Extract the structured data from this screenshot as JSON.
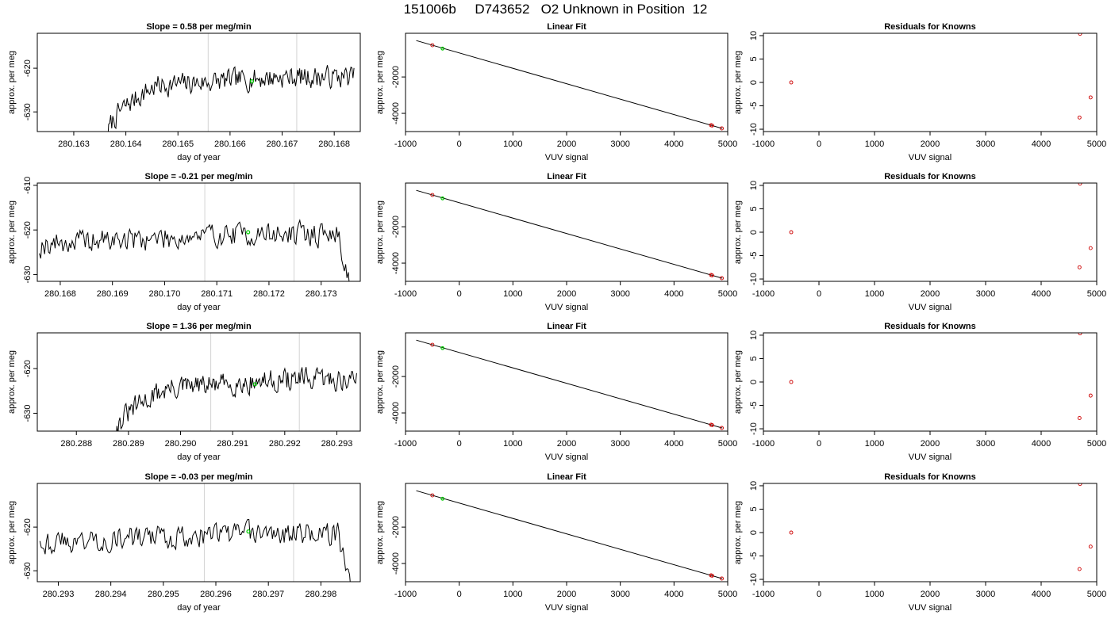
{
  "page_title": "151006b     D743652   O2 Unknown in Position  12",
  "colors": {
    "trace": "#000000",
    "reference_line": "#d3d3d3",
    "known_marker": "#cd0000",
    "unknown_marker": "#00cd00",
    "fit_line": "#000000"
  },
  "chart_data": [
    {
      "type": "line",
      "row": 0,
      "title": "Slope =  0.58  per meg/min",
      "xlabel": "day of year",
      "ylabel": "approx. per meg",
      "xlim": [
        280.1623,
        280.1685
      ],
      "ylim": [
        -634.5,
        -612.0
      ],
      "xticks": [
        280.163,
        280.164,
        280.165,
        280.166,
        280.167,
        280.168
      ],
      "xtick_labels": [
        "280.163",
        "280.164",
        "280.165",
        "280.166",
        "280.167",
        "280.168"
      ],
      "yticks": [
        -630,
        -620
      ],
      "ytick_labels": [
        "-630",
        "-620"
      ],
      "reference_lines_x": [
        280.16558,
        280.16728
      ],
      "series_start": 280.16365,
      "series_end": 280.16838,
      "start_value": -636,
      "mean_value": -622.0,
      "rise_fraction": 0.2,
      "noise": 1.4,
      "seed": 7,
      "unknown_point": {
        "x": 280.16642,
        "y": -623.0
      }
    },
    {
      "type": "scatter",
      "row": 0,
      "title": "Linear Fit",
      "xlabel": "VUV signal",
      "ylabel": "approx. per meg",
      "xlim": [
        -1000,
        5000
      ],
      "ylim": [
        -5000,
        400
      ],
      "xticks": [
        -1000,
        0,
        1000,
        2000,
        3000,
        4000,
        5000
      ],
      "xtick_labels": [
        "-1000",
        "0",
        "1000",
        "2000",
        "3000",
        "4000",
        "5000"
      ],
      "yticks": [
        -4000,
        -2000
      ],
      "ytick_labels": [
        "-4000",
        "-2000"
      ],
      "fit_line": [
        [
          -800,
          0
        ],
        [
          4900,
          -4830
        ]
      ],
      "knowns": [
        {
          "x": -500,
          "y": -255
        },
        {
          "x": 4690,
          "y": -4650
        },
        {
          "x": 4710,
          "y": -4670
        },
        {
          "x": 4890,
          "y": -4826
        }
      ],
      "unknown_point": {
        "x": -310,
        "y": -440
      }
    },
    {
      "type": "scatter",
      "row": 0,
      "title": "Residuals for Knowns",
      "xlabel": "VUV signal",
      "ylabel": "approx. per meg",
      "xlim": [
        -1000,
        5000
      ],
      "ylim": [
        -10.5,
        10.5
      ],
      "xticks": [
        -1000,
        0,
        1000,
        2000,
        3000,
        4000,
        5000
      ],
      "xtick_labels": [
        "-1000",
        "0",
        "1000",
        "2000",
        "3000",
        "4000",
        "5000"
      ],
      "yticks": [
        -10,
        -5,
        0,
        5,
        10
      ],
      "ytick_labels": [
        "-10",
        "-5",
        "0",
        "5",
        "10"
      ],
      "knowns": [
        {
          "x": -500,
          "y": 0
        },
        {
          "x": 4700,
          "y": 10.4
        },
        {
          "x": 4690,
          "y": -7.5
        },
        {
          "x": 4890,
          "y": -3.2
        }
      ]
    },
    {
      "type": "line",
      "row": 1,
      "title": "Slope =  -0.21  per meg/min",
      "xlabel": "day of year",
      "ylabel": "approx. per meg",
      "xlim": [
        280.16756,
        280.17375
      ],
      "ylim": [
        -631.5,
        -609.5
      ],
      "xticks": [
        280.168,
        280.169,
        280.17,
        280.171,
        280.172,
        280.173
      ],
      "xtick_labels": [
        "280.168",
        "280.169",
        "280.170",
        "280.171",
        "280.172",
        "280.173"
      ],
      "yticks": [
        -630,
        -620,
        -610
      ],
      "ytick_labels": [
        "-630",
        "-620",
        "-610"
      ],
      "reference_lines_x": [
        280.17077,
        280.17248
      ],
      "series_start": 280.1676,
      "series_end": 280.17362,
      "start_value": -624,
      "mean_value": -621.0,
      "rise_fraction": 0.02,
      "noise": 1.5,
      "seed": 19,
      "end_drop": true,
      "unknown_point": {
        "x": 280.1716,
        "y": -620.5
      }
    },
    {
      "type": "scatter",
      "row": 1,
      "title": "Linear Fit",
      "xlabel": "VUV signal",
      "ylabel": "approx. per meg",
      "xlim": [
        -1000,
        5000
      ],
      "ylim": [
        -5000,
        400
      ],
      "xticks": [
        -1000,
        0,
        1000,
        2000,
        3000,
        4000,
        5000
      ],
      "xtick_labels": [
        "-1000",
        "0",
        "1000",
        "2000",
        "3000",
        "4000",
        "5000"
      ],
      "yticks": [
        -4000,
        -2000
      ],
      "ytick_labels": [
        "-4000",
        "-2000"
      ],
      "fit_line": [
        [
          -800,
          0
        ],
        [
          4900,
          -4830
        ]
      ],
      "knowns": [
        {
          "x": -500,
          "y": -255
        },
        {
          "x": 4690,
          "y": -4650
        },
        {
          "x": 4710,
          "y": -4670
        },
        {
          "x": 4890,
          "y": -4826
        }
      ],
      "unknown_point": {
        "x": -310,
        "y": -440
      }
    },
    {
      "type": "scatter",
      "row": 1,
      "title": "Residuals for Knowns",
      "xlabel": "VUV signal",
      "ylabel": "approx. per meg",
      "xlim": [
        -1000,
        5000
      ],
      "ylim": [
        -10.5,
        10.5
      ],
      "xticks": [
        -1000,
        0,
        1000,
        2000,
        3000,
        4000,
        5000
      ],
      "xtick_labels": [
        "-1000",
        "0",
        "1000",
        "2000",
        "3000",
        "4000",
        "5000"
      ],
      "yticks": [
        -10,
        -5,
        0,
        5,
        10
      ],
      "ytick_labels": [
        "-10",
        "-5",
        "0",
        "5",
        "10"
      ],
      "knowns": [
        {
          "x": -500,
          "y": 0
        },
        {
          "x": 4700,
          "y": 10.4
        },
        {
          "x": 4690,
          "y": -7.5
        },
        {
          "x": 4890,
          "y": -3.4
        }
      ]
    },
    {
      "type": "line",
      "row": 2,
      "title": "Slope =  1.36  per meg/min",
      "xlabel": "day of year",
      "ylabel": "approx. per meg",
      "xlim": [
        280.28725,
        280.29345
      ],
      "ylim": [
        -634.0,
        -612.0
      ],
      "xticks": [
        280.288,
        280.289,
        280.29,
        280.291,
        280.292,
        280.293
      ],
      "xtick_labels": [
        "280.288",
        "280.289",
        "280.290",
        "280.291",
        "280.292",
        "280.293"
      ],
      "yticks": [
        -630,
        -620
      ],
      "ytick_labels": [
        "-630",
        "-620"
      ],
      "reference_lines_x": [
        280.29058,
        280.29228
      ],
      "series_start": 280.28872,
      "series_end": 280.29338,
      "start_value": -636,
      "mean_value": -622.5,
      "rise_fraction": 0.22,
      "noise": 1.4,
      "seed": 31,
      "unknown_point": {
        "x": 280.29143,
        "y": -623.5
      }
    },
    {
      "type": "scatter",
      "row": 2,
      "title": "Linear Fit",
      "xlabel": "VUV signal",
      "ylabel": "approx. per meg",
      "xlim": [
        -1000,
        5000
      ],
      "ylim": [
        -5000,
        400
      ],
      "xticks": [
        -1000,
        0,
        1000,
        2000,
        3000,
        4000,
        5000
      ],
      "xtick_labels": [
        "-1000",
        "0",
        "1000",
        "2000",
        "3000",
        "4000",
        "5000"
      ],
      "yticks": [
        -4000,
        -2000
      ],
      "ytick_labels": [
        "-4000",
        "-2000"
      ],
      "fit_line": [
        [
          -800,
          0
        ],
        [
          4900,
          -4830
        ]
      ],
      "knowns": [
        {
          "x": -500,
          "y": -255
        },
        {
          "x": 4690,
          "y": -4650
        },
        {
          "x": 4710,
          "y": -4670
        },
        {
          "x": 4890,
          "y": -4826
        }
      ],
      "unknown_point": {
        "x": -310,
        "y": -440
      }
    },
    {
      "type": "scatter",
      "row": 2,
      "title": "Residuals for Knowns",
      "xlabel": "VUV signal",
      "ylabel": "approx. per meg",
      "xlim": [
        -1000,
        5000
      ],
      "ylim": [
        -10.5,
        10.5
      ],
      "xticks": [
        -1000,
        0,
        1000,
        2000,
        3000,
        4000,
        5000
      ],
      "xtick_labels": [
        "-1000",
        "0",
        "1000",
        "2000",
        "3000",
        "4000",
        "5000"
      ],
      "yticks": [
        -10,
        -5,
        0,
        5,
        10
      ],
      "ytick_labels": [
        "-10",
        "-5",
        "0",
        "5",
        "10"
      ],
      "knowns": [
        {
          "x": -500,
          "y": 0
        },
        {
          "x": 4700,
          "y": 10.4
        },
        {
          "x": 4690,
          "y": -7.7
        },
        {
          "x": 4890,
          "y": -2.9
        }
      ]
    },
    {
      "type": "line",
      "row": 3,
      "title": "Slope =  -0.03  per meg/min",
      "xlabel": "day of year",
      "ylabel": "approx. per meg",
      "xlim": [
        280.2926,
        280.29875
      ],
      "ylim": [
        -632.5,
        -610.0
      ],
      "xticks": [
        280.293,
        280.294,
        280.295,
        280.296,
        280.297,
        280.298
      ],
      "xtick_labels": [
        "280.293",
        "280.294",
        "280.295",
        "280.296",
        "280.297",
        "280.298"
      ],
      "yticks": [
        -630,
        -620
      ],
      "ytick_labels": [
        "-630",
        "-620"
      ],
      "reference_lines_x": [
        280.29578,
        280.29748
      ],
      "series_start": 280.29265,
      "series_end": 280.29862,
      "start_value": -622,
      "mean_value": -621.5,
      "rise_fraction": 0.02,
      "noise": 1.5,
      "seed": 43,
      "end_drop": true,
      "unknown_point": {
        "x": 280.29662,
        "y": -621.0
      }
    },
    {
      "type": "scatter",
      "row": 3,
      "title": "Linear Fit",
      "xlabel": "VUV signal",
      "ylabel": "approx. per meg",
      "xlim": [
        -1000,
        5000
      ],
      "ylim": [
        -5000,
        400
      ],
      "xticks": [
        -1000,
        0,
        1000,
        2000,
        3000,
        4000,
        5000
      ],
      "xtick_labels": [
        "-1000",
        "0",
        "1000",
        "2000",
        "3000",
        "4000",
        "5000"
      ],
      "yticks": [
        -4000,
        -2000
      ],
      "ytick_labels": [
        "-4000",
        "-2000"
      ],
      "fit_line": [
        [
          -800,
          0
        ],
        [
          4900,
          -4830
        ]
      ],
      "knowns": [
        {
          "x": -500,
          "y": -255
        },
        {
          "x": 4690,
          "y": -4650
        },
        {
          "x": 4710,
          "y": -4670
        },
        {
          "x": 4890,
          "y": -4826
        }
      ],
      "unknown_point": {
        "x": -310,
        "y": -440
      }
    },
    {
      "type": "scatter",
      "row": 3,
      "title": "Residuals for Knowns",
      "xlabel": "VUV signal",
      "ylabel": "approx. per meg",
      "xlim": [
        -1000,
        5000
      ],
      "ylim": [
        -10.5,
        10.5
      ],
      "xticks": [
        -1000,
        0,
        1000,
        2000,
        3000,
        4000,
        5000
      ],
      "xtick_labels": [
        "-1000",
        "0",
        "1000",
        "2000",
        "3000",
        "4000",
        "5000"
      ],
      "yticks": [
        -10,
        -5,
        0,
        5,
        10
      ],
      "ytick_labels": [
        "-10",
        "-5",
        "0",
        "5",
        "10"
      ],
      "knowns": [
        {
          "x": -500,
          "y": 0
        },
        {
          "x": 4700,
          "y": 10.4
        },
        {
          "x": 4690,
          "y": -7.8
        },
        {
          "x": 4890,
          "y": -3.0
        }
      ]
    }
  ]
}
